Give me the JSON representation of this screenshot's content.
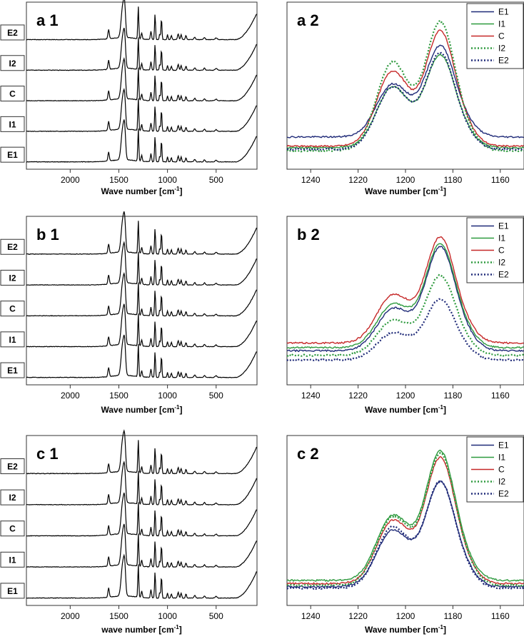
{
  "chart_data": [
    {
      "id": "a1",
      "panel_label": "a 1",
      "type": "line",
      "xlabel": "Wave number [cm",
      "xlabel_sup": "-1",
      "xlabel_end": "]",
      "xlim": [
        2450,
        80
      ],
      "xticks": [
        2000,
        1500,
        1000,
        500
      ],
      "stack_labels": [
        "E2",
        "I2",
        "C",
        "I1",
        "E1"
      ],
      "series": [
        {
          "name": "E2",
          "offset": 4
        },
        {
          "name": "I2",
          "offset": 3
        },
        {
          "name": "C",
          "offset": 2
        },
        {
          "name": "I1",
          "offset": 1
        },
        {
          "name": "E1",
          "offset": 0
        }
      ]
    },
    {
      "id": "a2",
      "panel_label": "a 2",
      "type": "line",
      "xlabel": "Wave number [cm",
      "xlabel_sup": "-1",
      "xlabel_end": "]",
      "xlim": [
        1250,
        1150
      ],
      "xticks": [
        1240,
        1220,
        1200,
        1180,
        1160
      ],
      "series": [
        {
          "name": "E1",
          "color": "#1f2a78",
          "dash": "solid",
          "peak1": 0.5,
          "peak2": 0.74,
          "base": 0.21
        },
        {
          "name": "I1",
          "color": "#2e9a3e",
          "dash": "solid",
          "peak1": 0.48,
          "peak2": 0.68,
          "base": 0.14
        },
        {
          "name": "C",
          "color": "#c62828",
          "dash": "solid",
          "peak1": 0.57,
          "peak2": 0.82,
          "base": 0.15
        },
        {
          "name": "I2",
          "color": "#2e9a3e",
          "dash": "dotted",
          "peak1": 0.62,
          "peak2": 0.87,
          "base": 0.12
        },
        {
          "name": "E2",
          "color": "#1f2a78",
          "dash": "dotted",
          "peak1": 0.48,
          "peak2": 0.69,
          "base": 0.13
        }
      ]
    },
    {
      "id": "b1",
      "panel_label": "b 1",
      "type": "line",
      "xlabel": "Wave number [cm",
      "xlabel_sup": "-1",
      "xlabel_end": "]",
      "xlim": [
        2450,
        80
      ],
      "xticks": [
        2000,
        1500,
        1000,
        500
      ],
      "stack_labels": [
        "E2",
        "I2",
        "C",
        "I1",
        "E1"
      ],
      "series": [
        {
          "name": "E2",
          "offset": 4
        },
        {
          "name": "I2",
          "offset": 3
        },
        {
          "name": "C",
          "offset": 2
        },
        {
          "name": "I1",
          "offset": 1
        },
        {
          "name": "E1",
          "offset": 0
        }
      ]
    },
    {
      "id": "b2",
      "panel_label": "b 2",
      "type": "line",
      "xlabel": "Wave number [cm",
      "xlabel_sup": "-1",
      "xlabel_end": "]",
      "xlim": [
        1250,
        1150
      ],
      "xticks": [
        1240,
        1220,
        1200,
        1180,
        1160
      ],
      "series": [
        {
          "name": "E1",
          "color": "#1f2a78",
          "dash": "solid",
          "peak1": 0.43,
          "peak2": 0.82,
          "base": 0.22
        },
        {
          "name": "I1",
          "color": "#2e9a3e",
          "dash": "solid",
          "peak1": 0.46,
          "peak2": 0.84,
          "base": 0.24
        },
        {
          "name": "C",
          "color": "#c62828",
          "dash": "solid",
          "peak1": 0.52,
          "peak2": 0.88,
          "base": 0.27
        },
        {
          "name": "I2",
          "color": "#2e9a3e",
          "dash": "dotted",
          "peak1": 0.37,
          "peak2": 0.65,
          "base": 0.19
        },
        {
          "name": "E2",
          "color": "#1f2a78",
          "dash": "dotted",
          "peak1": 0.3,
          "peak2": 0.51,
          "base": 0.16
        }
      ]
    },
    {
      "id": "c1",
      "panel_label": "c 1",
      "type": "line",
      "xlabel": "wave number [cm",
      "xlabel_sup": "-1",
      "xlabel_end": "]",
      "xlim": [
        2450,
        80
      ],
      "xticks": [
        2000,
        1500,
        1000,
        500
      ],
      "stack_labels": [
        "E2",
        "I2",
        "C",
        "I1",
        "E1"
      ],
      "series": [
        {
          "name": "E2",
          "offset": 4
        },
        {
          "name": "I2",
          "offset": 3
        },
        {
          "name": "C",
          "offset": 2
        },
        {
          "name": "I1",
          "offset": 1
        },
        {
          "name": "E1",
          "offset": 0
        }
      ]
    },
    {
      "id": "c2",
      "panel_label": "c 2",
      "type": "line",
      "xlabel": "Wave number [cm",
      "xlabel_sup": "-1",
      "xlabel_end": "]",
      "xlim": [
        1250,
        1150
      ],
      "xticks": [
        1240,
        1220,
        1200,
        1180,
        1160
      ],
      "series": [
        {
          "name": "E1",
          "color": "#1f2a78",
          "dash": "solid",
          "peak1": 0.42,
          "peak2": 0.72,
          "base": 0.12
        },
        {
          "name": "I1",
          "color": "#2e9a3e",
          "dash": "solid",
          "peak1": 0.5,
          "peak2": 0.9,
          "base": 0.16
        },
        {
          "name": "C",
          "color": "#c62828",
          "dash": "solid",
          "peak1": 0.47,
          "peak2": 0.86,
          "base": 0.14
        },
        {
          "name": "I2",
          "color": "#2e9a3e",
          "dash": "dotted",
          "peak1": 0.49,
          "peak2": 0.88,
          "base": 0.13
        },
        {
          "name": "E2",
          "color": "#1f2a78",
          "dash": "dotted",
          "peak1": 0.44,
          "peak2": 0.72,
          "base": 0.11
        }
      ]
    }
  ]
}
